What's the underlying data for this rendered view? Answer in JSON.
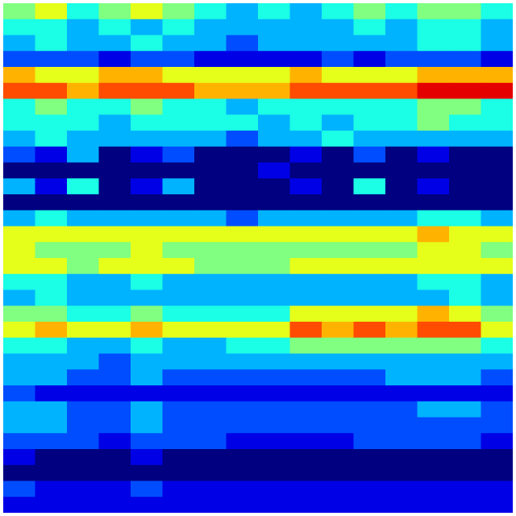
{
  "chart_data": {
    "type": "heatmap",
    "colormap": "jet",
    "value_range": [
      0,
      1
    ],
    "axes_visible": false,
    "grid": false,
    "legend": "none",
    "values": [
      [
        0.5,
        0.6,
        0.4,
        0.5,
        0.6,
        0.5,
        0.4,
        0.3,
        0.4,
        0.3,
        0.4,
        0.5,
        0.4,
        0.5,
        0.5,
        0.4
      ],
      [
        0.4,
        0.4,
        0.3,
        0.4,
        0.3,
        0.4,
        0.3,
        0.3,
        0.3,
        0.3,
        0.3,
        0.4,
        0.3,
        0.4,
        0.4,
        0.3
      ],
      [
        0.3,
        0.4,
        0.3,
        0.3,
        0.4,
        0.3,
        0.3,
        0.2,
        0.3,
        0.3,
        0.3,
        0.3,
        0.3,
        0.4,
        0.4,
        0.3
      ],
      [
        0.2,
        0.2,
        0.2,
        0.1,
        0.2,
        0.2,
        0.1,
        0.1,
        0.1,
        0.1,
        0.2,
        0.1,
        0.2,
        0.2,
        0.2,
        0.1
      ],
      [
        0.7,
        0.6,
        0.6,
        0.7,
        0.7,
        0.6,
        0.6,
        0.6,
        0.6,
        0.7,
        0.6,
        0.6,
        0.6,
        0.7,
        0.7,
        0.7
      ],
      [
        0.8,
        0.8,
        0.7,
        0.8,
        0.8,
        0.8,
        0.7,
        0.7,
        0.7,
        0.8,
        0.8,
        0.8,
        0.8,
        0.9,
        0.9,
        0.9
      ],
      [
        0.4,
        0.5,
        0.4,
        0.4,
        0.5,
        0.4,
        0.4,
        0.3,
        0.4,
        0.4,
        0.4,
        0.4,
        0.4,
        0.5,
        0.5,
        0.4
      ],
      [
        0.4,
        0.4,
        0.4,
        0.3,
        0.4,
        0.4,
        0.4,
        0.4,
        0.3,
        0.4,
        0.3,
        0.4,
        0.4,
        0.5,
        0.4,
        0.4
      ],
      [
        0.3,
        0.4,
        0.3,
        0.3,
        0.3,
        0.3,
        0.3,
        0.2,
        0.3,
        0.3,
        0.4,
        0.3,
        0.3,
        0.3,
        0.3,
        0.3
      ],
      [
        0.2,
        0.1,
        0.3,
        0.0,
        0.1,
        0.2,
        0.0,
        0.0,
        0.0,
        0.1,
        0.0,
        0.2,
        0.0,
        0.1,
        0.0,
        0.0
      ],
      [
        0.0,
        0.0,
        0.0,
        0.0,
        0.0,
        0.0,
        0.0,
        0.0,
        0.1,
        0.0,
        0.0,
        0.0,
        0.0,
        0.0,
        0.0,
        0.0
      ],
      [
        0.3,
        0.1,
        0.4,
        0.0,
        0.1,
        0.3,
        0.0,
        0.0,
        0.0,
        0.1,
        0.0,
        0.4,
        0.0,
        0.1,
        0.0,
        0.0
      ],
      [
        0.0,
        0.0,
        0.0,
        0.0,
        0.0,
        0.0,
        0.0,
        0.0,
        0.0,
        0.0,
        0.0,
        0.0,
        0.0,
        0.0,
        0.0,
        0.0
      ],
      [
        0.3,
        0.4,
        0.3,
        0.3,
        0.3,
        0.3,
        0.3,
        0.2,
        0.3,
        0.3,
        0.3,
        0.3,
        0.3,
        0.4,
        0.4,
        0.3
      ],
      [
        0.6,
        0.6,
        0.6,
        0.6,
        0.6,
        0.6,
        0.6,
        0.6,
        0.6,
        0.6,
        0.6,
        0.6,
        0.6,
        0.7,
        0.6,
        0.6
      ],
      [
        0.6,
        0.5,
        0.5,
        0.5,
        0.6,
        0.5,
        0.5,
        0.5,
        0.5,
        0.5,
        0.5,
        0.5,
        0.5,
        0.6,
        0.6,
        0.5
      ],
      [
        0.6,
        0.6,
        0.5,
        0.6,
        0.6,
        0.6,
        0.5,
        0.5,
        0.5,
        0.6,
        0.6,
        0.6,
        0.6,
        0.6,
        0.6,
        0.6
      ],
      [
        0.4,
        0.4,
        0.3,
        0.3,
        0.4,
        0.3,
        0.3,
        0.3,
        0.3,
        0.3,
        0.3,
        0.3,
        0.3,
        0.4,
        0.4,
        0.3
      ],
      [
        0.3,
        0.4,
        0.3,
        0.3,
        0.3,
        0.3,
        0.3,
        0.3,
        0.3,
        0.3,
        0.3,
        0.3,
        0.3,
        0.3,
        0.4,
        0.3
      ],
      [
        0.5,
        0.5,
        0.4,
        0.4,
        0.5,
        0.4,
        0.4,
        0.4,
        0.4,
        0.6,
        0.6,
        0.6,
        0.6,
        0.7,
        0.6,
        0.5
      ],
      [
        0.6,
        0.7,
        0.6,
        0.6,
        0.7,
        0.6,
        0.6,
        0.6,
        0.6,
        0.8,
        0.7,
        0.8,
        0.7,
        0.8,
        0.8,
        0.6
      ],
      [
        0.4,
        0.4,
        0.3,
        0.3,
        0.4,
        0.3,
        0.3,
        0.4,
        0.4,
        0.5,
        0.5,
        0.5,
        0.5,
        0.5,
        0.5,
        0.4
      ],
      [
        0.3,
        0.3,
        0.3,
        0.2,
        0.3,
        0.3,
        0.3,
        0.3,
        0.3,
        0.3,
        0.3,
        0.3,
        0.3,
        0.3,
        0.3,
        0.3
      ],
      [
        0.3,
        0.3,
        0.2,
        0.2,
        0.3,
        0.2,
        0.2,
        0.2,
        0.2,
        0.2,
        0.2,
        0.2,
        0.3,
        0.3,
        0.3,
        0.2
      ],
      [
        0.2,
        0.1,
        0.1,
        0.1,
        0.1,
        0.1,
        0.1,
        0.1,
        0.1,
        0.1,
        0.1,
        0.1,
        0.1,
        0.1,
        0.1,
        0.1
      ],
      [
        0.3,
        0.3,
        0.2,
        0.2,
        0.3,
        0.2,
        0.2,
        0.2,
        0.2,
        0.2,
        0.2,
        0.2,
        0.2,
        0.3,
        0.3,
        0.2
      ],
      [
        0.3,
        0.3,
        0.2,
        0.2,
        0.3,
        0.2,
        0.2,
        0.2,
        0.2,
        0.2,
        0.2,
        0.2,
        0.2,
        0.2,
        0.2,
        0.2
      ],
      [
        0.2,
        0.2,
        0.2,
        0.1,
        0.2,
        0.2,
        0.2,
        0.1,
        0.1,
        0.1,
        0.1,
        0.2,
        0.2,
        0.2,
        0.2,
        0.1
      ],
      [
        0.1,
        0.0,
        0.0,
        0.0,
        0.1,
        0.0,
        0.0,
        0.0,
        0.0,
        0.0,
        0.0,
        0.0,
        0.0,
        0.0,
        0.0,
        0.0
      ],
      [
        0.0,
        0.0,
        0.0,
        0.0,
        0.0,
        0.0,
        0.0,
        0.0,
        0.0,
        0.0,
        0.0,
        0.0,
        0.0,
        0.0,
        0.0,
        0.0
      ],
      [
        0.2,
        0.1,
        0.1,
        0.1,
        0.2,
        0.1,
        0.1,
        0.1,
        0.1,
        0.1,
        0.1,
        0.1,
        0.1,
        0.1,
        0.1,
        0.1
      ],
      [
        0.1,
        0.1,
        0.1,
        0.1,
        0.1,
        0.1,
        0.1,
        0.1,
        0.1,
        0.1,
        0.1,
        0.1,
        0.1,
        0.1,
        0.1,
        0.1
      ]
    ]
  }
}
